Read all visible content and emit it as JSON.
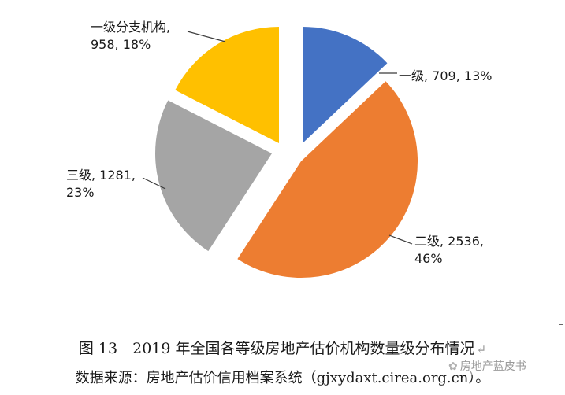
{
  "chart_data": {
    "type": "pie",
    "legend": "none",
    "slices": [
      {
        "category": "一级",
        "value": 709,
        "percent": "13%",
        "color": "#4472C4",
        "label_lines": [
          "一级, 709, 13%"
        ]
      },
      {
        "category": "二级",
        "value": 2536,
        "percent": "46%",
        "color": "#ED7D31",
        "label_lines": [
          "二级, 2536,",
          "46%"
        ]
      },
      {
        "category": "三级",
        "value": 1281,
        "percent": "23%",
        "color": "#A5A5A5",
        "label_lines": [
          "三级, 1281,",
          "23%"
        ]
      },
      {
        "category": "一级分支机构",
        "value": 958,
        "percent": "18%",
        "color": "#FFC000",
        "label_lines": [
          "一级分支机构,",
          "958, 18%"
        ]
      }
    ]
  },
  "caption": {
    "title": "图 13　2019 年全国各等级房地产估价机构数量级分布情况",
    "source": "数据来源：房地产估价信用档案系统（gjxydaxt.cirea.org.cn）。",
    "paragraph_mark": "↵"
  },
  "watermark": {
    "glyph": "✿",
    "text": "房地产蓝皮书"
  }
}
